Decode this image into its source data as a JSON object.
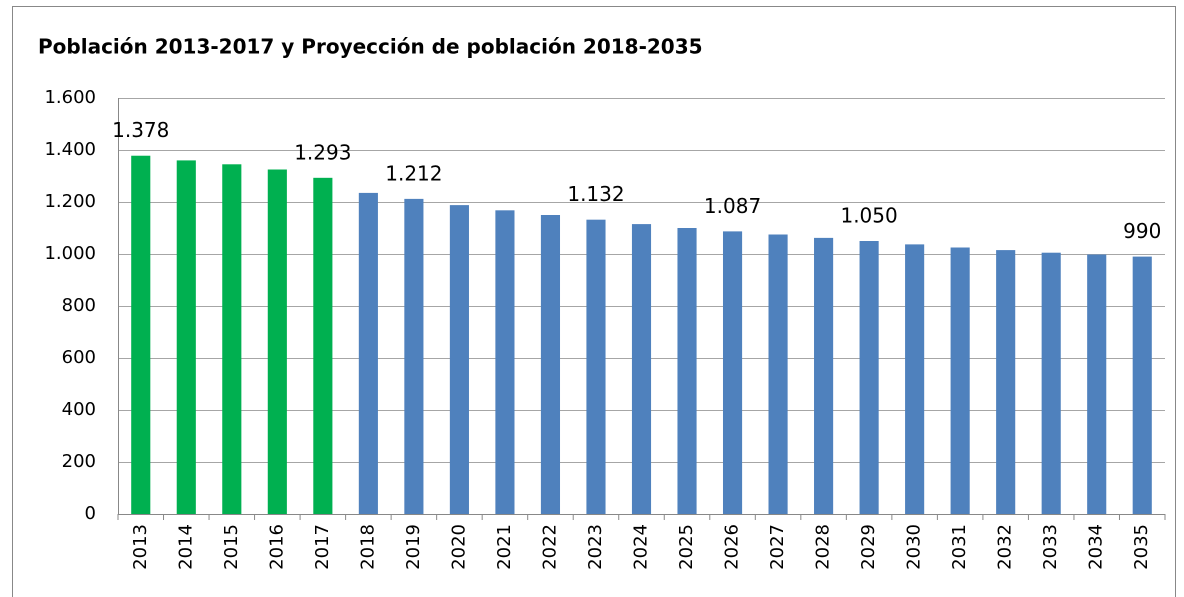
{
  "chart_data": {
    "type": "bar",
    "title": "Población 2013-2017 y Proyección de población 2018-2035",
    "categories": [
      "2013",
      "2014",
      "2015",
      "2016",
      "2017",
      "2018",
      "2019",
      "2020",
      "2021",
      "2022",
      "2023",
      "2024",
      "2025",
      "2026",
      "2027",
      "2028",
      "2029",
      "2030",
      "2031",
      "2032",
      "2033",
      "2034",
      "2035"
    ],
    "values": [
      1378,
      1360,
      1345,
      1325,
      1293,
      1235,
      1212,
      1188,
      1168,
      1150,
      1132,
      1115,
      1100,
      1087,
      1075,
      1062,
      1050,
      1037,
      1025,
      1015,
      1005,
      998,
      990
    ],
    "value_labels": [
      "1.378",
      null,
      null,
      null,
      "1.293",
      null,
      "1.212",
      null,
      null,
      null,
      "1.132",
      null,
      null,
      "1.087",
      null,
      null,
      "1.050",
      null,
      null,
      null,
      null,
      null,
      "990"
    ],
    "colors": [
      "#00b050",
      "#00b050",
      "#00b050",
      "#00b050",
      "#00b050",
      "#4f81bd",
      "#4f81bd",
      "#4f81bd",
      "#4f81bd",
      "#4f81bd",
      "#4f81bd",
      "#4f81bd",
      "#4f81bd",
      "#4f81bd",
      "#4f81bd",
      "#4f81bd",
      "#4f81bd",
      "#4f81bd",
      "#4f81bd",
      "#4f81bd",
      "#4f81bd",
      "#4f81bd",
      "#4f81bd"
    ],
    "ylim": [
      0,
      1600
    ],
    "yticks": [
      0,
      200,
      400,
      600,
      800,
      {
        "value": 1000,
        "label": "1.000"
      },
      {
        "value": 1200,
        "label": "1.200"
      },
      {
        "value": 1400,
        "label": "1.400"
      },
      {
        "value": 1600,
        "label": "1.600"
      }
    ],
    "grid": true
  }
}
